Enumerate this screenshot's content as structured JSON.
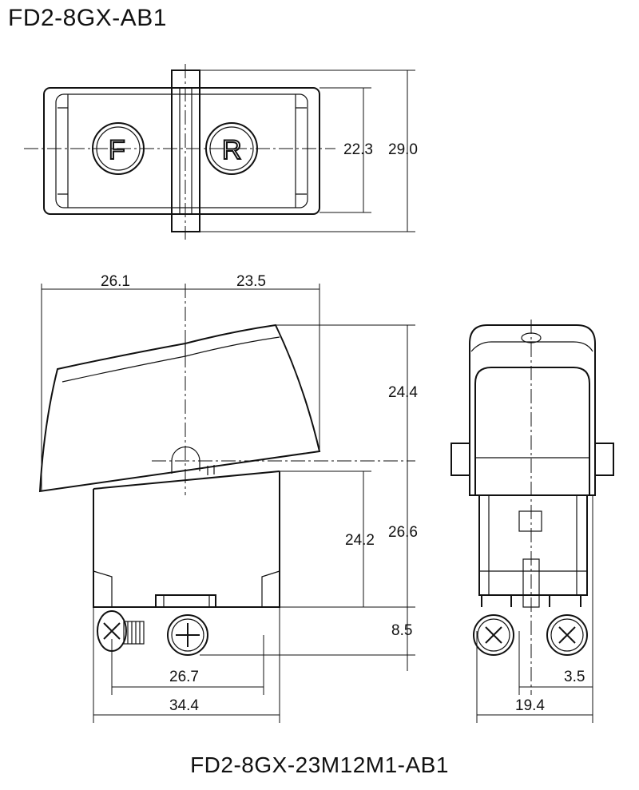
{
  "title": "FD2-8GX-AB1",
  "subtitle": "FD2-8GX-23M12M1-AB1",
  "top_view": {
    "left_marking": "F",
    "right_marking": "R"
  },
  "dimensions": {
    "top_inner_height": "22.3",
    "top_outer_height": "29.0",
    "front_left_width": "26.1",
    "front_right_width": "23.5",
    "trigger_height": "24.4",
    "body_height": "26.6",
    "housing_height": "24.2",
    "terminal_height": "8.5",
    "terminal_spacing": "26.7",
    "body_width": "34.4",
    "side_width": "19.4",
    "side_offset": "3.5"
  }
}
